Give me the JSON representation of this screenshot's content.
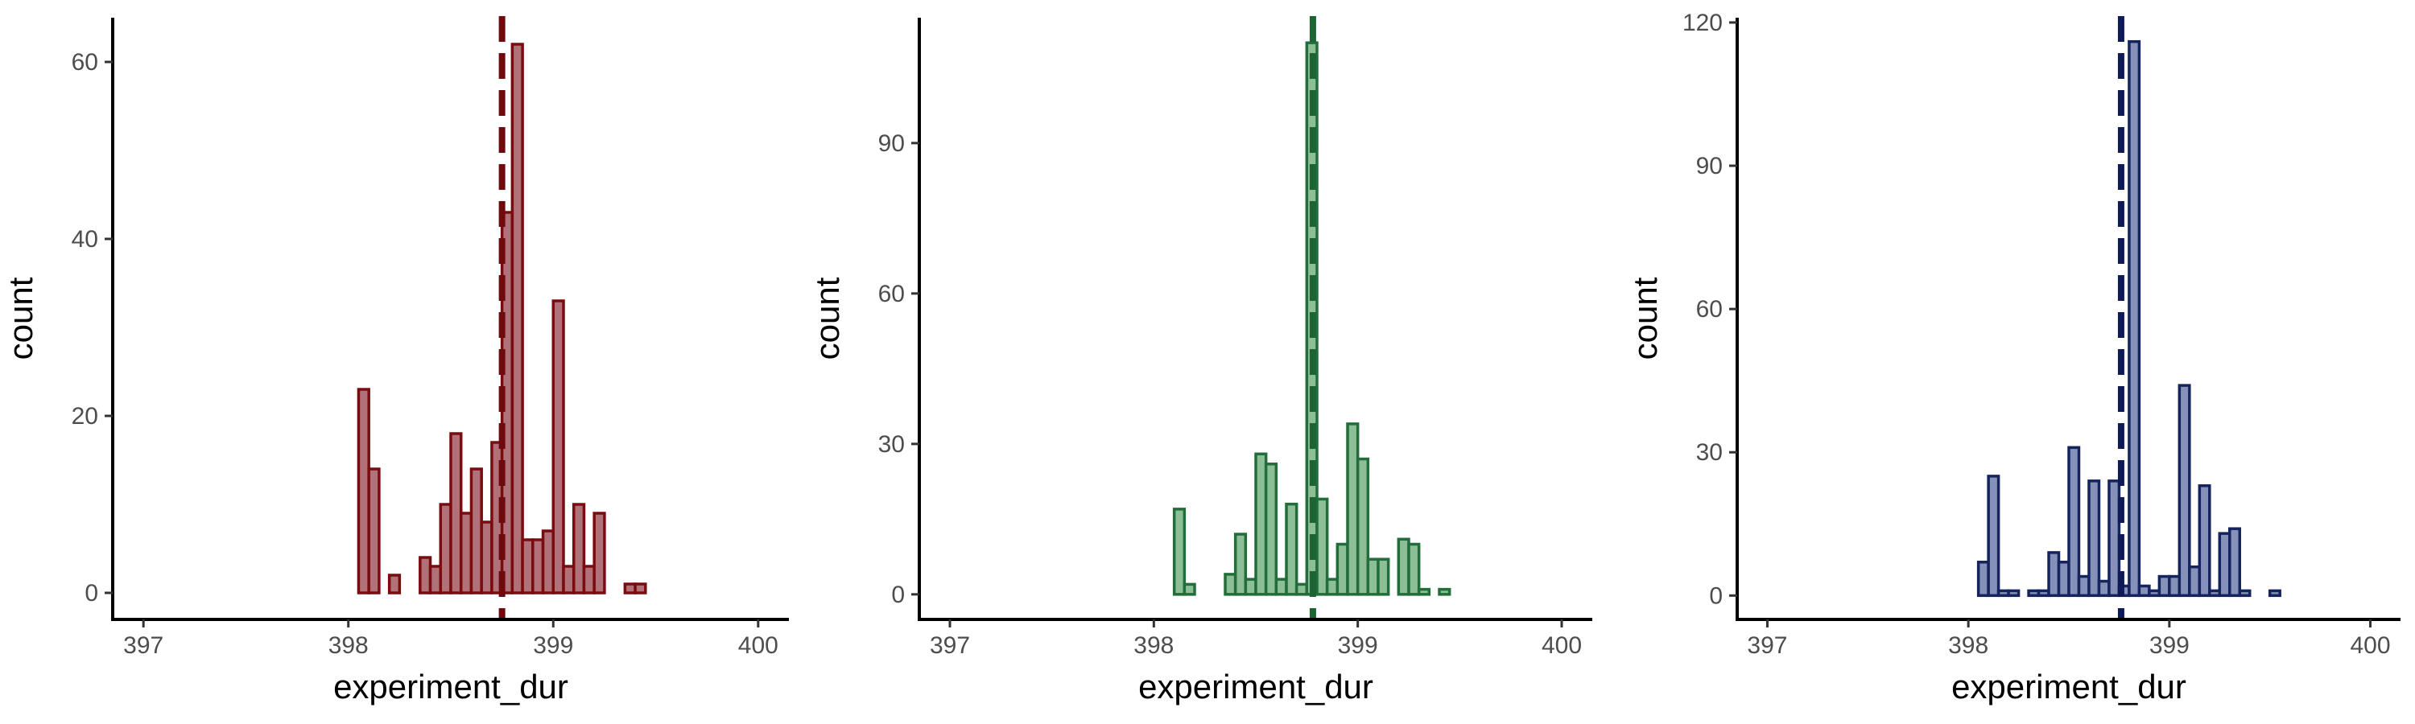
{
  "chart_data": [
    {
      "type": "bar",
      "title": "",
      "xlabel": "experiment_dur",
      "ylabel": "count",
      "xlim": [
        396.85,
        400.15
      ],
      "ylim": [
        -3,
        65
      ],
      "xticks": [
        397,
        398,
        399,
        400
      ],
      "yticks": [
        0,
        20,
        40,
        60
      ],
      "bin_width": 0.05,
      "bins_start": 398.05,
      "values": [
        23,
        14,
        0,
        2,
        0,
        0,
        4,
        3,
        10,
        18,
        9,
        14,
        8,
        17,
        43,
        62,
        6,
        6,
        7,
        33,
        3,
        10,
        3,
        9,
        0,
        0,
        1,
        1
      ],
      "vline": 398.75,
      "fill": "#b07278",
      "stroke": "#7a0c10",
      "line_color": "#6e0a0e",
      "grid": false
    },
    {
      "type": "bar",
      "title": "",
      "xlabel": "experiment_dur",
      "ylabel": "count",
      "xlim": [
        396.85,
        400.15
      ],
      "ylim": [
        -5,
        115
      ],
      "xticks": [
        397,
        398,
        399,
        400
      ],
      "yticks": [
        0,
        30,
        60,
        90
      ],
      "bin_width": 0.05,
      "bins_start": 398.1,
      "values": [
        17,
        2,
        0,
        0,
        0,
        4,
        12,
        3,
        28,
        26,
        3,
        18,
        2,
        110,
        19,
        3,
        10,
        34,
        27,
        7,
        7,
        0,
        11,
        10,
        1,
        0,
        1
      ],
      "vline": 398.78,
      "fill": "#8dbf97",
      "stroke": "#226d3a",
      "line_color": "#1d6434",
      "grid": false
    },
    {
      "type": "bar",
      "title": "",
      "xlabel": "experiment_dur",
      "ylabel": "count",
      "xlim": [
        396.85,
        400.15
      ],
      "ylim": [
        -5,
        121
      ],
      "xticks": [
        397,
        398,
        399,
        400
      ],
      "yticks": [
        0,
        30,
        60,
        90,
        120
      ],
      "bin_width": 0.05,
      "bins_start": 398.05,
      "values": [
        7,
        25,
        1,
        1,
        0,
        1,
        1,
        9,
        7,
        31,
        4,
        24,
        3,
        24,
        2,
        116,
        2,
        1,
        4,
        4,
        44,
        6,
        23,
        1,
        13,
        14,
        1,
        0,
        0,
        1
      ],
      "vline": 398.76,
      "fill": "#8591b8",
      "stroke": "#16245e",
      "line_color": "#0f1b56",
      "grid": false
    }
  ]
}
